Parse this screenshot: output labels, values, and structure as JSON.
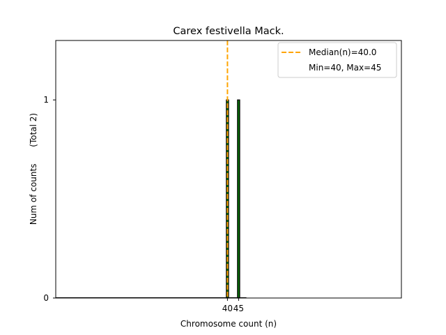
{
  "chart_data": {
    "type": "bar",
    "title": "Carex festivella Mack.",
    "xlabel": "Chromosome count (n)",
    "ylabel_main": "Num of counts",
    "ylabel_total": "(Total 2)",
    "bars": [
      {
        "x": 40,
        "count": 1
      },
      {
        "x": 45,
        "count": 1
      }
    ],
    "xticks": [
      40,
      45
    ],
    "yticks": [
      0,
      1
    ],
    "xlim": [
      -37,
      118
    ],
    "ylim": [
      0,
      1.3
    ],
    "median": 40.0,
    "legend": {
      "placement": "top-right",
      "median_label": "Median(n)=40.0",
      "range_label": "Min=40, Max=45"
    },
    "colors": {
      "bar_fill": "#007000",
      "bar_edge": "#000000",
      "median_line": "#ffa500",
      "axis": "#000000"
    }
  }
}
